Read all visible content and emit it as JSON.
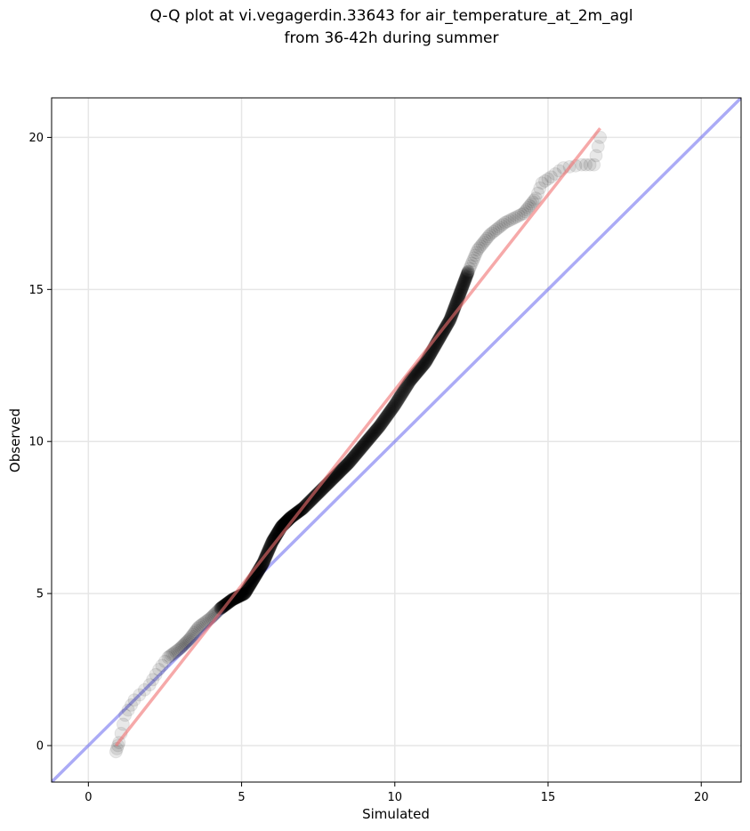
{
  "chart_data": {
    "type": "scatter",
    "title_lines": [
      "Q-Q plot at vi.vegagerdin.33643 for air_temperature_at_2m_agl",
      "from 36-42h during summer"
    ],
    "xlabel": "Simulated",
    "ylabel": "Observed",
    "xlim": [
      -1.2,
      21.3
    ],
    "ylim": [
      -1.2,
      21.3
    ],
    "xticks": [
      0,
      5,
      10,
      15,
      20
    ],
    "yticks": [
      0,
      5,
      10,
      15,
      20
    ],
    "grid": true,
    "colors": {
      "points": "#000000",
      "identity_line": "#6666ee",
      "fit_line": "#f07070",
      "grid": "#e6e6e6"
    },
    "identity_line": {
      "from": [
        -1.2,
        -1.2
      ],
      "to": [
        21.3,
        21.3
      ]
    },
    "fit_line": {
      "from": [
        0.9,
        0.0
      ],
      "to": [
        16.7,
        20.3
      ]
    },
    "quantile_knots": [
      [
        0.9,
        -0.2
      ],
      [
        1.0,
        0.1
      ],
      [
        1.2,
        1.0
      ],
      [
        1.5,
        1.5
      ],
      [
        2.0,
        2.0
      ],
      [
        2.3,
        2.5
      ],
      [
        2.6,
        2.9
      ],
      [
        3.0,
        3.2
      ],
      [
        3.3,
        3.5
      ],
      [
        3.6,
        3.9
      ],
      [
        4.0,
        4.2
      ],
      [
        4.3,
        4.5
      ],
      [
        4.7,
        4.8
      ],
      [
        5.1,
        5.0
      ],
      [
        5.4,
        5.5
      ],
      [
        5.7,
        6.0
      ],
      [
        6.0,
        6.7
      ],
      [
        6.3,
        7.2
      ],
      [
        6.6,
        7.5
      ],
      [
        7.0,
        7.8
      ],
      [
        7.5,
        8.3
      ],
      [
        8.0,
        8.8
      ],
      [
        8.5,
        9.3
      ],
      [
        9.0,
        9.9
      ],
      [
        9.5,
        10.5
      ],
      [
        10.0,
        11.2
      ],
      [
        10.5,
        12.0
      ],
      [
        11.0,
        12.6
      ],
      [
        11.4,
        13.3
      ],
      [
        11.8,
        14.0
      ],
      [
        12.1,
        14.8
      ],
      [
        12.4,
        15.6
      ],
      [
        12.7,
        16.3
      ],
      [
        13.1,
        16.8
      ],
      [
        13.6,
        17.2
      ],
      [
        14.2,
        17.5
      ],
      [
        14.6,
        18.0
      ],
      [
        14.8,
        18.5
      ],
      [
        15.1,
        18.7
      ],
      [
        15.5,
        19.0
      ],
      [
        16.1,
        19.1
      ],
      [
        16.5,
        19.1
      ],
      [
        16.7,
        20.0
      ]
    ]
  }
}
